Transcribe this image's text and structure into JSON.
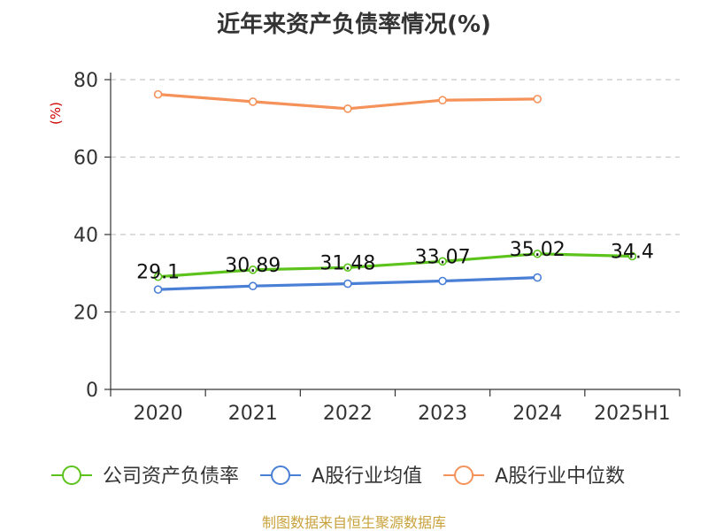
{
  "chart_data": {
    "type": "line",
    "title": "近年来资产负债率情况(%)",
    "unit_label": "(%)",
    "categories": [
      "2020",
      "2021",
      "2022",
      "2023",
      "2024",
      "2025H1"
    ],
    "ylim": [
      0,
      80
    ],
    "yticks": [
      "0",
      "20",
      "40",
      "60",
      "80"
    ],
    "grid": true,
    "legend_position": "bottom",
    "series": [
      {
        "name": "公司资产负债率",
        "color": "#5cc31c",
        "values": [
          29.1,
          30.89,
          31.48,
          33.07,
          35.02,
          34.4
        ],
        "labels": [
          "29.1",
          "30.89",
          "31.48",
          "33.07",
          "35.02",
          "34.4"
        ]
      },
      {
        "name": "A股行业均值",
        "color": "#4a7fd6",
        "values": [
          25.8,
          26.7,
          27.3,
          28.0,
          28.9,
          null
        ]
      },
      {
        "name": "A股行业中位数",
        "color": "#f5925a",
        "values": [
          76.2,
          74.3,
          72.5,
          74.7,
          75.0,
          null
        ]
      }
    ],
    "source": "制图数据来自恒生聚源数据库"
  }
}
